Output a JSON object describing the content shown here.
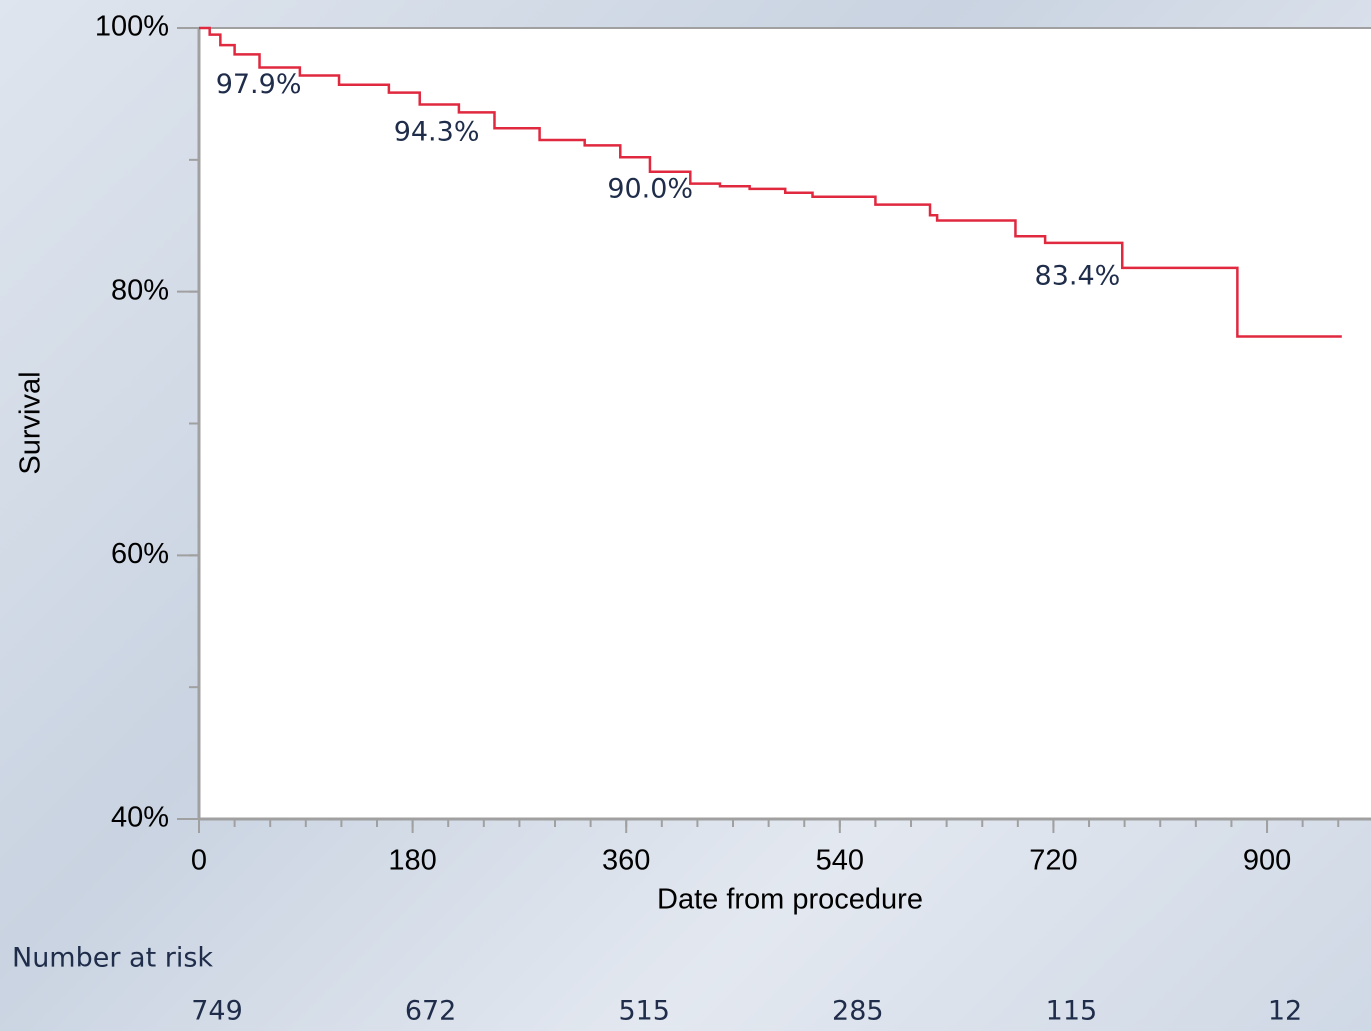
{
  "chart_data": {
    "type": "step-line",
    "x_label": "Date from procedure",
    "y_label": "Survival",
    "x": [
      0,
      9,
      18,
      30,
      51,
      85,
      118,
      160,
      186,
      219,
      249,
      287,
      325,
      355,
      380,
      414,
      439,
      464,
      494,
      517,
      570,
      616,
      622,
      688,
      713,
      778,
      875,
      963
    ],
    "series": [
      {
        "color": "#e0283f",
        "values": [
          100,
          99.5,
          98.7,
          98.0,
          97.0,
          96.4,
          95.7,
          95.1,
          94.2,
          93.6,
          92.4,
          91.5,
          91.1,
          90.2,
          89.1,
          88.2,
          88.0,
          87.8,
          87.5,
          87.2,
          86.6,
          85.8,
          85.4,
          84.2,
          83.7,
          81.8,
          76.6,
          76.6
        ]
      }
    ],
    "xlim": [
      0,
      978
    ],
    "xticks": [
      0,
      180,
      360,
      540,
      720,
      900
    ],
    "xminor_step": 30,
    "ylim": [
      40,
      100
    ],
    "yticks": [
      {
        "value": 40,
        "label": "40%"
      },
      {
        "value": 60,
        "label": "60%"
      },
      {
        "value": 80,
        "label": "80%"
      },
      {
        "value": 100,
        "label": "100%"
      }
    ],
    "yminor_step": 10,
    "annotations": [
      {
        "text": "97.9%",
        "x": 30,
        "value": 97.9
      },
      {
        "text": "94.3%",
        "x": 180,
        "value": 94.3
      },
      {
        "text": "90.0%",
        "x": 360,
        "value": 90.0
      },
      {
        "text": "83.4%",
        "x": 720,
        "value": 83.4
      }
    ],
    "risk_table": {
      "title": "Number at risk",
      "x": [
        0,
        180,
        360,
        540,
        720,
        900
      ],
      "values": [
        749,
        672,
        515,
        285,
        115,
        12
      ]
    }
  }
}
